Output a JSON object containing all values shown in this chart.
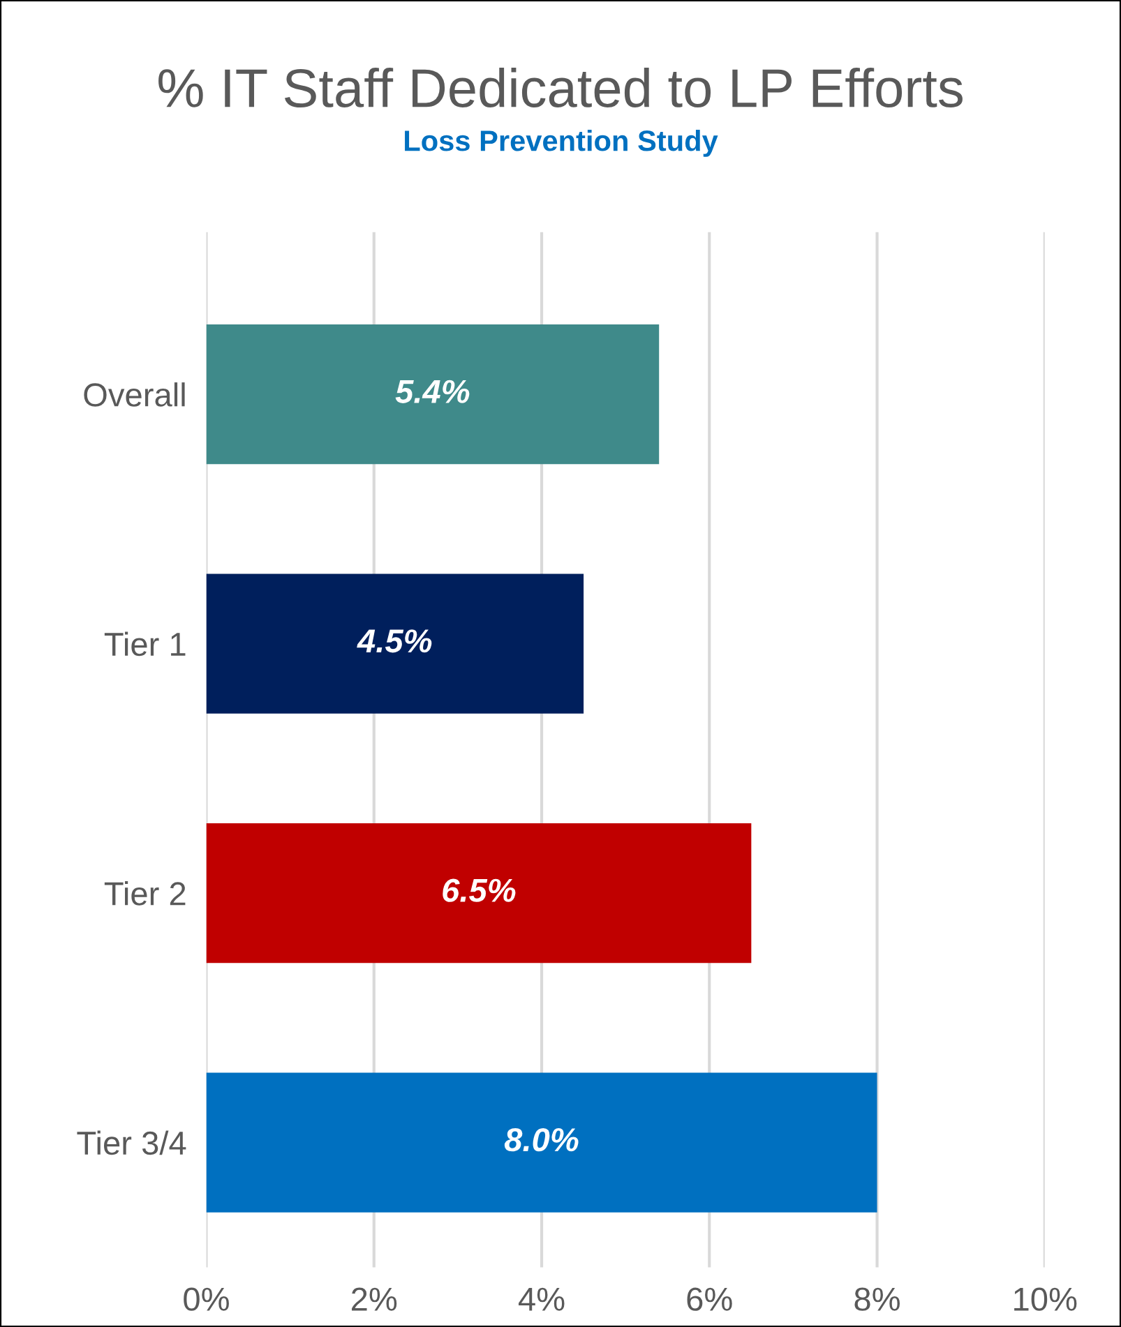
{
  "chart_data": {
    "type": "bar",
    "orientation": "horizontal",
    "title": "% IT Staff Dedicated to LP Efforts",
    "subtitle": "Loss Prevention Study",
    "categories": [
      "Overall",
      "Tier 1",
      "Tier 2",
      "Tier 3/4"
    ],
    "values": [
      5.4,
      4.5,
      6.5,
      8.0
    ],
    "value_labels": [
      "5.4%",
      "4.5%",
      "6.5%",
      "8.0%"
    ],
    "colors": [
      "#3f8a8a",
      "#001f5c",
      "#c00000",
      "#0070c0"
    ],
    "xlim": [
      0,
      10
    ],
    "xticks": [
      {
        "value": 0,
        "label": "0%"
      },
      {
        "value": 2,
        "label": "2%"
      },
      {
        "value": 4,
        "label": "4%"
      },
      {
        "value": 6,
        "label": "6%"
      },
      {
        "value": 8,
        "label": "8%"
      },
      {
        "value": 10,
        "label": "10%"
      }
    ],
    "grid": "x",
    "legend": false
  }
}
